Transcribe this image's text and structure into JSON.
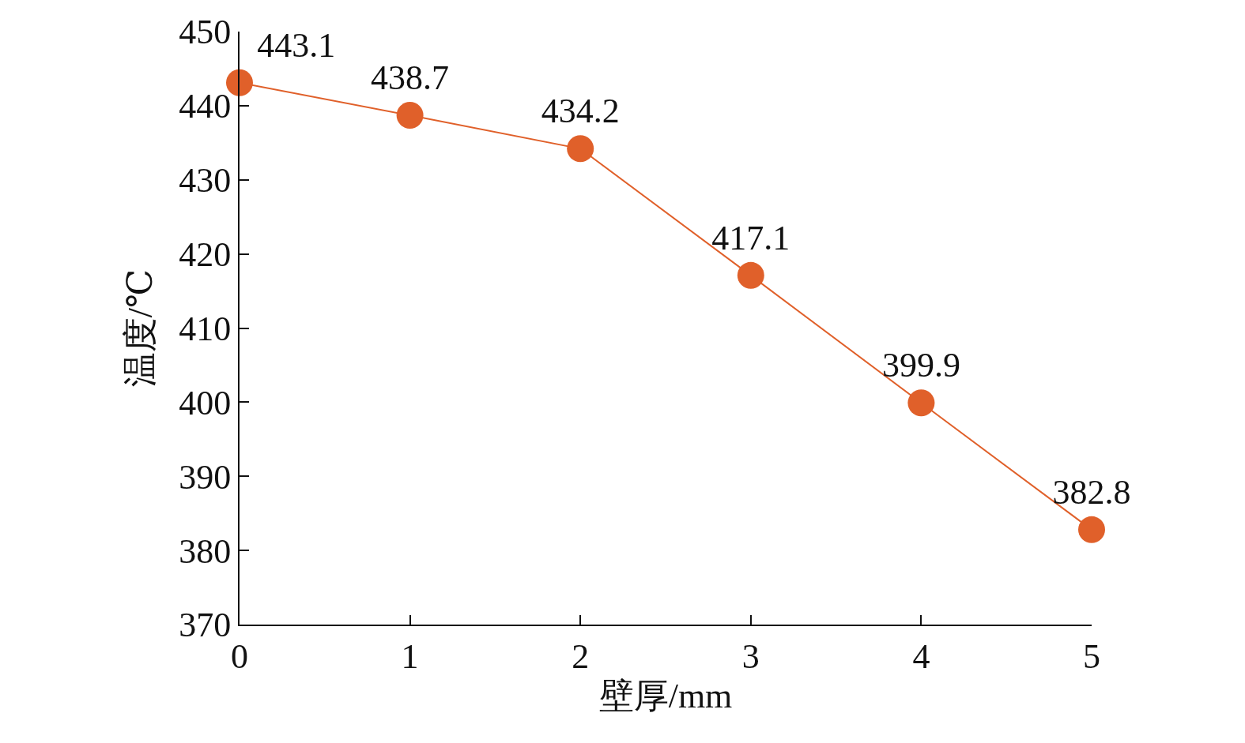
{
  "chart_data": {
    "type": "line",
    "xlabel": "壁厚/mm",
    "ylabel": "温度/℃",
    "x": [
      0,
      1,
      2,
      3,
      4,
      5
    ],
    "series": [
      {
        "color": "#e0602a",
        "values": [
          443.1,
          438.7,
          434.2,
          417.1,
          399.9,
          382.8
        ]
      }
    ],
    "xlim": [
      0,
      5
    ],
    "xticks": [
      0,
      1,
      2,
      3,
      4,
      5
    ],
    "ylim": [
      370,
      450
    ],
    "yticks": [
      370,
      380,
      390,
      400,
      410,
      420,
      430,
      440,
      450
    ],
    "marker": "circle",
    "line_style": "solid",
    "data_labels": true
  }
}
